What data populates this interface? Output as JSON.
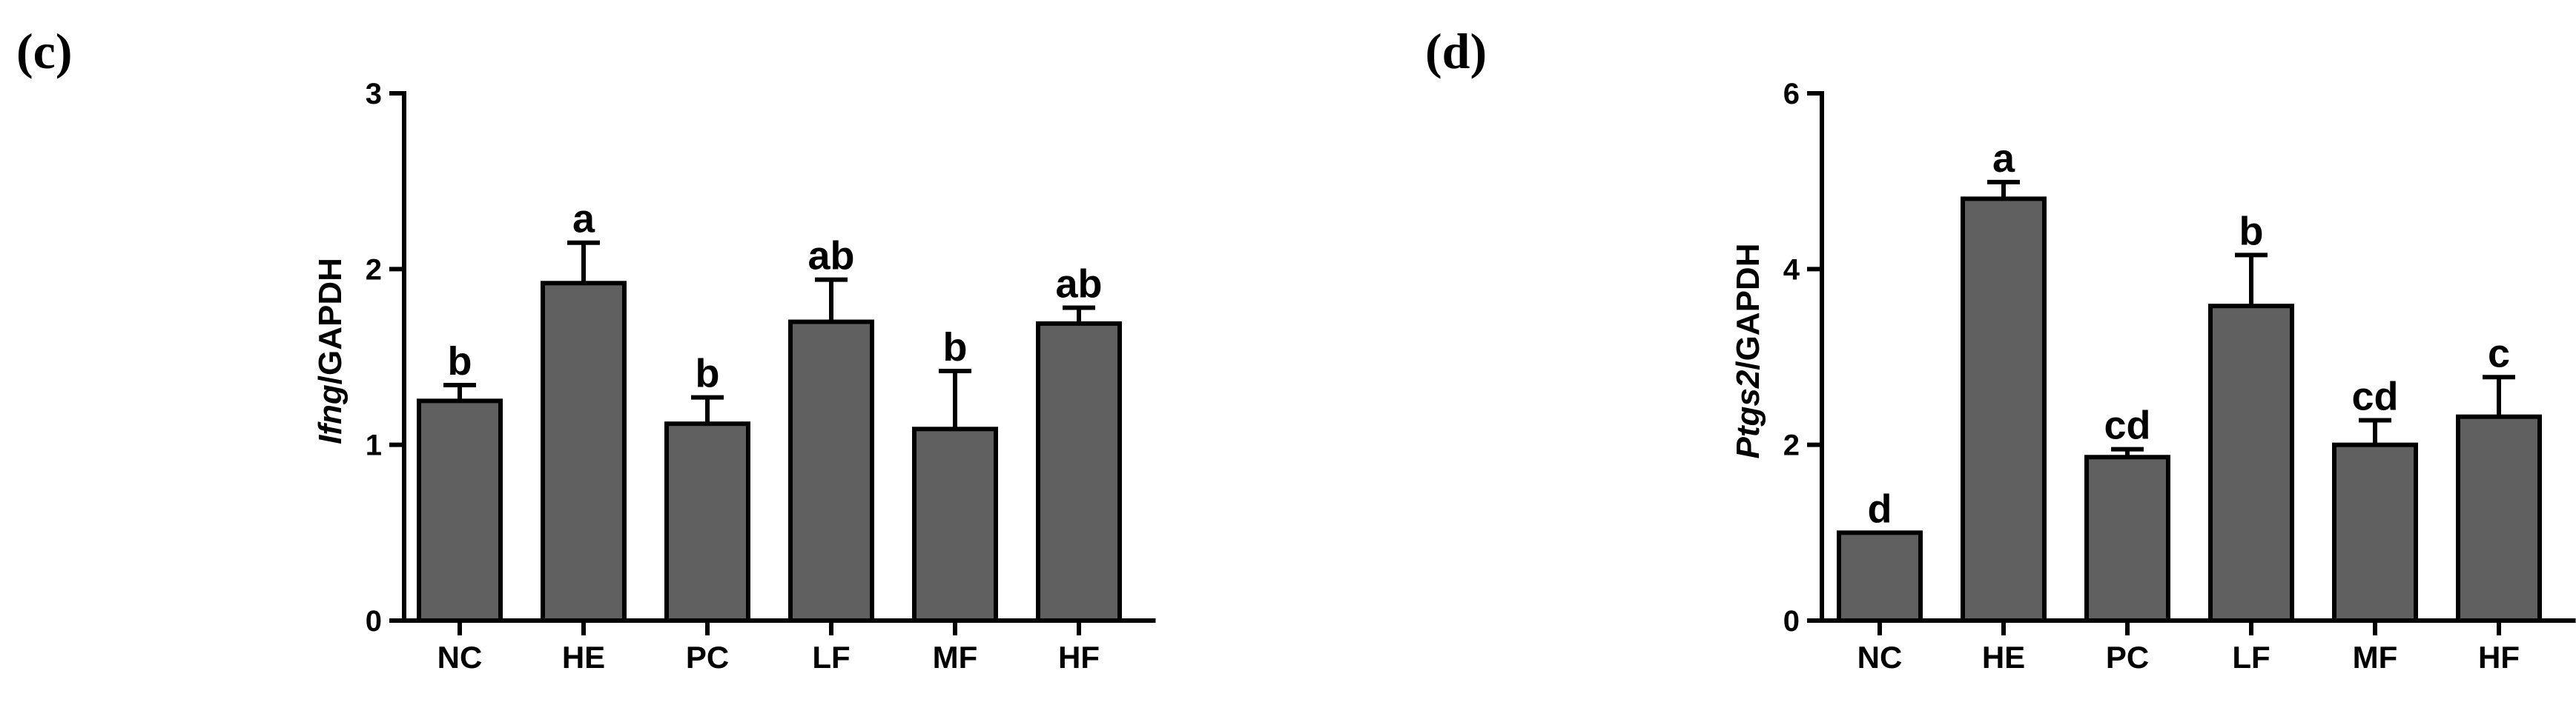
{
  "chart_data": [
    {
      "type": "bar",
      "panel_label": "(c)",
      "ylabel_gene": "Ifng",
      "ylabel_rest": "/GAPDH",
      "xlabel": "",
      "categories": [
        "NC",
        "HE",
        "PC",
        "LF",
        "MF",
        "HF"
      ],
      "values": [
        1.25,
        1.92,
        1.12,
        1.7,
        1.09,
        1.69
      ],
      "errors": [
        0.09,
        0.23,
        0.15,
        0.24,
        0.33,
        0.09
      ],
      "significance": [
        "b",
        "a",
        "b",
        "ab",
        "b",
        "ab"
      ],
      "ylim": [
        0,
        3
      ],
      "yticks": [
        0,
        1,
        2,
        3
      ],
      "bar_color": "#606060"
    },
    {
      "type": "bar",
      "panel_label": "(d)",
      "ylabel_gene": "Ptgs2",
      "ylabel_rest": "/GAPDH",
      "xlabel": "",
      "categories": [
        "NC",
        "HE",
        "PC",
        "LF",
        "MF",
        "HF"
      ],
      "values": [
        1.0,
        4.8,
        1.86,
        3.58,
        2.0,
        2.32
      ],
      "errors": [
        0.0,
        0.19,
        0.09,
        0.58,
        0.28,
        0.45
      ],
      "significance": [
        "d",
        "a",
        "cd",
        "b",
        "cd",
        "c"
      ],
      "ylim": [
        0,
        6
      ],
      "yticks": [
        0,
        2,
        4,
        6
      ],
      "bar_color": "#606060"
    }
  ]
}
